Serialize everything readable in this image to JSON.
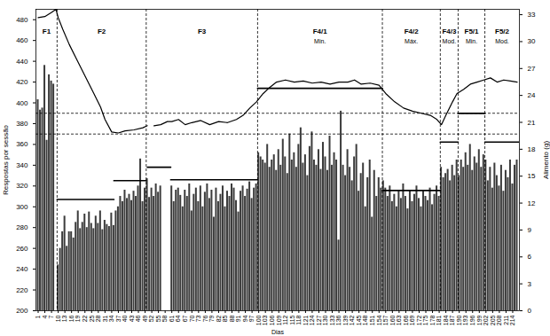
{
  "chart_data": {
    "type": "bar",
    "xlabel": "Dias",
    "ylabel": "Respostas por sessão",
    "y2label": "Alimento (g)",
    "xlim": [
      0,
      217
    ],
    "xticks": [
      1,
      4,
      7,
      10,
      13,
      16,
      19,
      22,
      25,
      28,
      31,
      34,
      37,
      40,
      43,
      46,
      49,
      52,
      55,
      58,
      61,
      64,
      67,
      70,
      73,
      76,
      79,
      82,
      85,
      88,
      91,
      94,
      97,
      100,
      103,
      106,
      109,
      112,
      115,
      118,
      121,
      124,
      127,
      130,
      133,
      136,
      139,
      142,
      145,
      148,
      151,
      154,
      157,
      160,
      163,
      166,
      169,
      172,
      175,
      178,
      181,
      184,
      187,
      190,
      193,
      196,
      199,
      202,
      205,
      208,
      211,
      214
    ],
    "ylim": [
      200,
      490
    ],
    "yticks": [
      200,
      220,
      240,
      260,
      280,
      300,
      320,
      340,
      360,
      380,
      400,
      420,
      440,
      460,
      480
    ],
    "y2lim": [
      0,
      33.6
    ],
    "y2ticks": [
      0,
      3,
      6,
      9,
      12,
      15,
      18,
      21,
      24,
      27,
      30,
      33
    ],
    "series": [
      {
        "type": "bar",
        "color": "#3c3c3c",
        "x": [
          1,
          2,
          3,
          4,
          5,
          6,
          7,
          8,
          10,
          11,
          12,
          13,
          14,
          15,
          16,
          17,
          18,
          19,
          20,
          21,
          22,
          23,
          24,
          25,
          26,
          27,
          28,
          29,
          30,
          31,
          32,
          33,
          34,
          35,
          36,
          37,
          38,
          39,
          40,
          41,
          42,
          43,
          44,
          45,
          46,
          47,
          48,
          49,
          50,
          51,
          52,
          53,
          54,
          55,
          56,
          61,
          62,
          63,
          64,
          65,
          66,
          67,
          68,
          69,
          70,
          71,
          72,
          73,
          74,
          75,
          76,
          77,
          78,
          79,
          80,
          81,
          82,
          83,
          84,
          85,
          86,
          87,
          88,
          89,
          90,
          91,
          92,
          93,
          94,
          95,
          96,
          97,
          98,
          99,
          100,
          101,
          102,
          103,
          104,
          105,
          106,
          107,
          108,
          109,
          110,
          111,
          112,
          113,
          114,
          115,
          116,
          117,
          118,
          119,
          120,
          121,
          122,
          123,
          124,
          125,
          126,
          127,
          128,
          129,
          130,
          131,
          132,
          133,
          134,
          135,
          136,
          137,
          138,
          139,
          140,
          141,
          142,
          143,
          144,
          145,
          146,
          147,
          148,
          149,
          150,
          151,
          152,
          153,
          154,
          155,
          156,
          157,
          158,
          159,
          160,
          161,
          162,
          163,
          164,
          165,
          166,
          167,
          168,
          169,
          170,
          171,
          172,
          173,
          174,
          175,
          176,
          177,
          178,
          179,
          180,
          181,
          182,
          183,
          184,
          185,
          186,
          187,
          188,
          189,
          190,
          191,
          192,
          193,
          194,
          195,
          196,
          197,
          198,
          199,
          200,
          201,
          202,
          203,
          204,
          205,
          206,
          207,
          208,
          209,
          210,
          211,
          212,
          213,
          214,
          215,
          216
        ],
        "values": [
          403,
          393,
          395,
          436,
          364,
          427,
          421,
          418,
          244,
          260,
          276,
          291,
          262,
          276,
          276,
          270,
          285,
          296,
          279,
          285,
          293,
          280,
          295,
          284,
          279,
          291,
          284,
          296,
          278,
          287,
          283,
          281,
          294,
          282,
          296,
          300,
          310,
          305,
          316,
          308,
          312,
          306,
          315,
          310,
          320,
          346,
          305,
          318,
          327,
          309,
          318,
          310,
          322,
          314,
          320,
          320,
          305,
          316,
          318,
          311,
          300,
          316,
          310,
          322,
          296,
          312,
          318,
          305,
          320,
          300,
          314,
          322,
          308,
          316,
          290,
          318,
          305,
          312,
          320,
          300,
          315,
          310,
          322,
          318,
          306,
          295,
          315,
          320,
          310,
          317,
          324,
          308,
          318,
          322,
          352,
          348,
          345,
          342,
          360,
          338,
          345,
          350,
          335,
          355,
          340,
          365,
          348,
          332,
          370,
          345,
          352,
          338,
          360,
          376,
          342,
          350,
          330,
          358,
          372,
          345,
          340,
          355,
          336,
          362,
          348,
          335,
          368,
          340,
          352,
          345,
          268,
          392,
          340,
          330,
          355,
          338,
          325,
          348,
          360,
          315,
          332,
          342,
          300,
          328,
          345,
          290,
          335,
          310,
          328,
          318,
          325,
          318,
          310,
          320,
          305,
          312,
          300,
          315,
          308,
          322,
          310,
          298,
          316,
          305,
          312,
          320,
          308,
          300,
          315,
          310,
          306,
          318,
          302,
          312,
          320,
          310,
          338,
          328,
          332,
          336,
          325,
          340,
          330,
          345,
          330,
          345,
          338,
          352,
          340,
          360,
          335,
          348,
          342,
          355,
          338,
          350,
          345,
          325,
          338,
          318,
          342,
          330,
          320,
          340,
          315,
          335,
          328,
          345,
          322,
          340,
          345
        ]
      },
      {
        "type": "line",
        "color": "#000000",
        "x": [
          1,
          4,
          7,
          9,
          10,
          12,
          15,
          18,
          22,
          26,
          29,
          31,
          34,
          37,
          40,
          44,
          48,
          50,
          51,
          53,
          56,
          59,
          61,
          64,
          67,
          70,
          74,
          78,
          82,
          86,
          90,
          93,
          96,
          99,
          102,
          105,
          108,
          112,
          116,
          120,
          124,
          128,
          132,
          136,
          140,
          143,
          146,
          150,
          154,
          157,
          161,
          165,
          169,
          173,
          177,
          180,
          182,
          184,
          187,
          189,
          192,
          195,
          198,
          201,
          204,
          207,
          210,
          213,
          216
        ],
        "values": [
          482,
          483,
          487,
          490,
          482,
          471,
          456,
          443,
          426,
          409,
          396,
          384,
          372,
          371,
          373,
          374,
          376,
          378,
          null,
          378,
          379,
          382,
          382,
          384,
          379,
          381,
          383,
          379,
          382,
          381,
          384,
          388,
          395,
          401,
          409,
          415,
          420,
          422,
          420,
          421,
          419,
          420,
          418,
          420,
          420,
          422,
          418,
          419,
          417,
          409,
          401,
          395,
          392,
          390,
          388,
          384,
          379,
          388,
          401,
          409,
          413,
          418,
          420,
          422,
          424,
          420,
          422,
          421,
          420
        ]
      },
      {
        "type": "line",
        "axis": "y2",
        "color": "#000000",
        "x": [
          9.5,
          35,
          35,
          35,
          49.5,
          49.5,
          50,
          60.5,
          60.5,
          60.5,
          99.5,
          99.5,
          99.5,
          155.5,
          155.5,
          155.5,
          181.5,
          181.5,
          181.5,
          189.5,
          189.5,
          189.5,
          201.5,
          201.5,
          201.5,
          217
        ],
        "values": [
          12.4,
          12.4,
          null,
          14.5,
          14.5,
          null,
          16,
          16,
          null,
          14.6,
          14.6,
          null,
          24.8,
          24.8,
          null,
          13.4,
          13.4,
          null,
          18.8,
          18.8,
          null,
          22,
          22,
          null,
          18.8,
          18.8
        ]
      }
    ],
    "reference_lines": [
      390,
      370
    ],
    "phases": [
      {
        "label": "F1",
        "start": 0,
        "end": 9.5
      },
      {
        "label": "F2",
        "start": 9.5,
        "end": 49.5
      },
      {
        "label": "F3",
        "start": 49.5,
        "end": 99.5
      },
      {
        "label": "F4/1",
        "sublabel": "Min.",
        "start": 99.5,
        "end": 155.5
      },
      {
        "label": "F4/2",
        "sublabel": "Máx.",
        "start": 155.5,
        "end": 181.5
      },
      {
        "label": "F4/3",
        "sublabel": "Mod.",
        "start": 181.5,
        "end": 189.5
      },
      {
        "label": "F5/1",
        "sublabel": "Min.",
        "start": 189.5,
        "end": 201.5
      },
      {
        "label": "F5/2",
        "sublabel": "Mod.",
        "start": 201.5,
        "end": 217
      }
    ]
  }
}
